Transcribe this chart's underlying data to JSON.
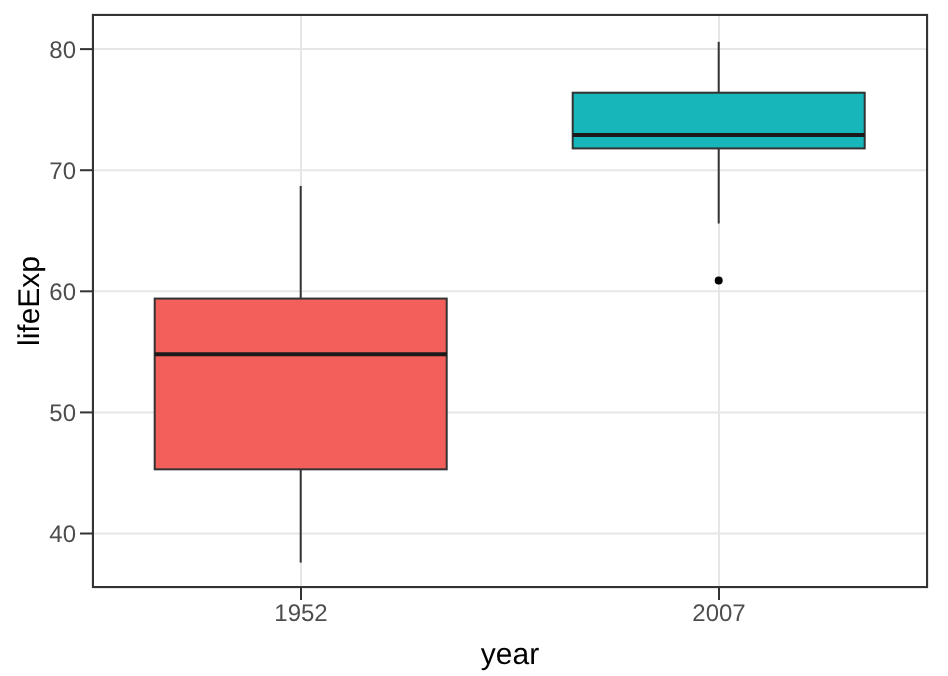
{
  "chart_data": {
    "type": "box",
    "xlabel": "year",
    "ylabel": "lifeExp",
    "categories": [
      "1952",
      "2007"
    ],
    "colors": [
      "#f35f5a",
      "#17b6bb"
    ],
    "boxes": [
      {
        "low": 37.6,
        "q1": 45.3,
        "median": 54.8,
        "q3": 59.4,
        "high": 68.7
      },
      {
        "low": 65.6,
        "q1": 71.8,
        "median": 72.9,
        "q3": 76.4,
        "high": 80.6,
        "outliers": [
          60.9
        ]
      }
    ],
    "ylim": [
      35.5,
      82.9
    ],
    "yticks": [
      40,
      50,
      60,
      70,
      80
    ],
    "grid": true
  }
}
